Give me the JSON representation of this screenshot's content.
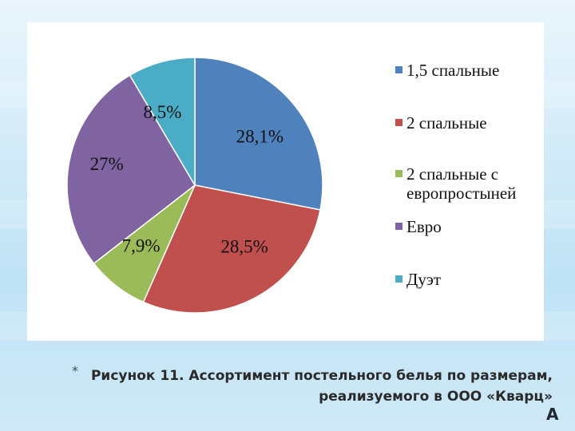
{
  "chart_data": {
    "type": "pie",
    "slices": [
      {
        "name": "1,5 спальные",
        "value": 28.1,
        "label": "28,1%",
        "color": "#4f81bd"
      },
      {
        "name": "2 спальные",
        "value": 28.5,
        "label": "28,5%",
        "color": "#c0504d"
      },
      {
        "name": "2 спальные с европростыней",
        "value": 7.9,
        "label": "7,9%",
        "color": "#9bbb59"
      },
      {
        "name": "Евро",
        "value": 27,
        "label": "27%",
        "color": "#8064a2"
      },
      {
        "name": "Дуэт",
        "value": 8.5,
        "label": "8,5%",
        "color": "#4bacc6"
      }
    ],
    "legend_position": "right",
    "start_angle": "12 o'clock, clockwise"
  },
  "caption": {
    "bullet": "*",
    "line1": "Рисунок 11. Ассортимент постельного белья по размерам,",
    "line2": "реализуемого в ООО «Кварц»"
  },
  "corner_mark": "A"
}
